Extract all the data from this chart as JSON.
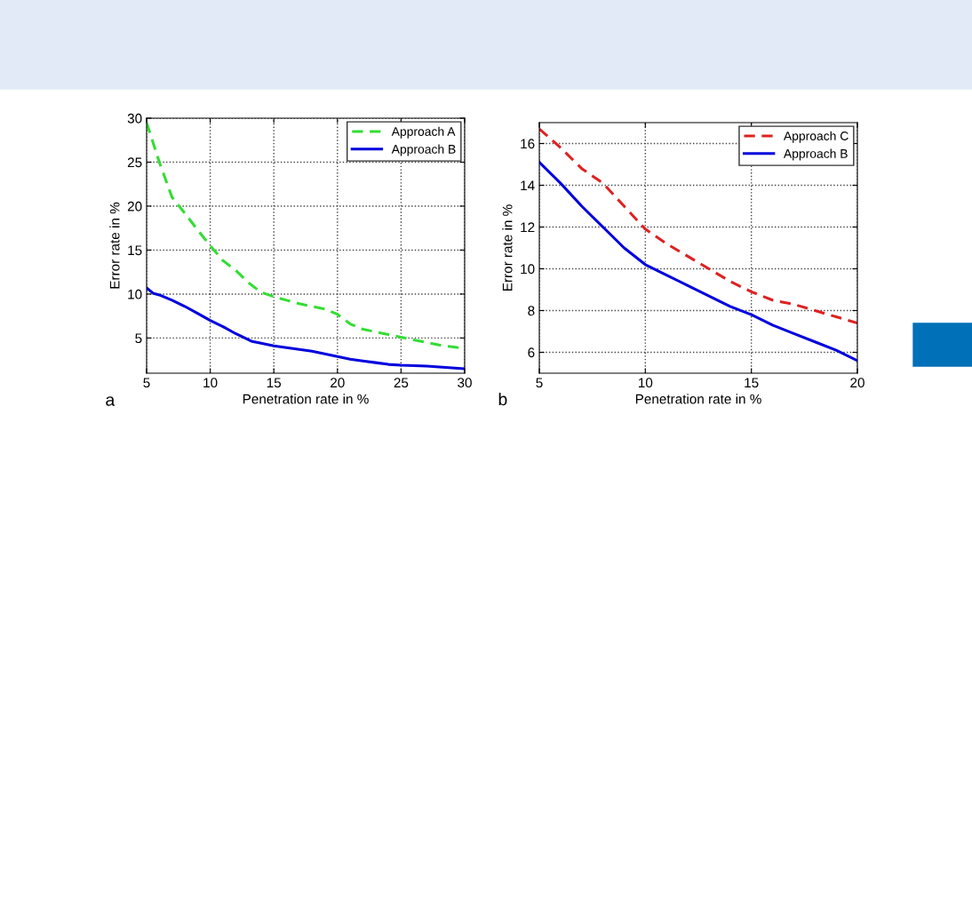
{
  "chart_data": [
    {
      "type": "line",
      "xlabel": "Penetration rate in %",
      "ylabel": "Error rate in %",
      "annotations": [
        "a"
      ],
      "xlim": [
        5,
        30
      ],
      "xticks": [
        5,
        10,
        15,
        20,
        25,
        30
      ],
      "ylim": [
        1,
        30
      ],
      "yticks": [
        5,
        10,
        15,
        20,
        25,
        30
      ],
      "grid": true,
      "legend": "top right",
      "series": [
        {
          "name": "Approach A",
          "color": "#33dd33",
          "line_style": "dashed",
          "x": [
            5,
            6,
            7,
            8,
            9,
            10,
            11,
            12,
            13,
            14,
            15,
            16,
            17,
            18,
            19,
            20,
            21,
            22,
            23,
            24,
            25,
            26,
            27,
            28,
            29,
            30
          ],
          "values": [
            29.5,
            25,
            21,
            19.2,
            17.3,
            15.5,
            13.8,
            12.7,
            11.3,
            10.2,
            9.7,
            9.3,
            8.9,
            8.6,
            8.3,
            7.7,
            6.6,
            6.0,
            5.7,
            5.4,
            5.1,
            4.8,
            4.5,
            4.2,
            4.0,
            3.8
          ]
        },
        {
          "name": "Approach B",
          "color": "#0000dd",
          "line_style": "solid",
          "x": [
            5,
            5.5,
            6,
            7,
            8,
            9,
            10,
            11,
            12,
            13.3,
            14,
            15,
            16,
            17,
            18,
            19,
            20,
            21,
            22,
            23,
            24,
            25,
            26,
            27,
            28,
            29,
            30
          ],
          "values": [
            10.7,
            10.1,
            9.9,
            9.3,
            8.6,
            7.8,
            7.0,
            6.3,
            5.5,
            4.6,
            4.4,
            4.1,
            3.9,
            3.7,
            3.5,
            3.2,
            2.9,
            2.6,
            2.4,
            2.2,
            2.0,
            1.9,
            1.85,
            1.8,
            1.7,
            1.6,
            1.5
          ]
        }
      ]
    },
    {
      "type": "line",
      "xlabel": "Penetration rate in %",
      "ylabel": "Error rate in %",
      "annotations": [
        "b"
      ],
      "xlim": [
        5,
        20
      ],
      "xticks": [
        5,
        10,
        15,
        20
      ],
      "ylim": [
        5,
        17
      ],
      "yticks": [
        6,
        8,
        10,
        12,
        14,
        16
      ],
      "grid": true,
      "legend": "top right",
      "series": [
        {
          "name": "Approach C",
          "color": "#dd2222",
          "line_style": "dashed",
          "x": [
            5,
            6,
            7,
            8,
            9,
            10,
            11,
            12,
            13,
            14,
            15,
            16,
            17,
            18,
            19,
            20
          ],
          "values": [
            16.7,
            15.8,
            14.8,
            14.1,
            13.0,
            11.9,
            11.2,
            10.6,
            10.0,
            9.4,
            8.9,
            8.5,
            8.3,
            8.0,
            7.7,
            7.4
          ]
        },
        {
          "name": "Approach B",
          "color": "#0000dd",
          "line_style": "solid",
          "x": [
            5,
            6,
            7,
            8,
            9,
            10,
            11,
            12,
            13,
            14,
            15,
            16,
            17,
            18,
            19,
            20
          ],
          "values": [
            15.1,
            14.1,
            13.0,
            12.0,
            11.0,
            10.2,
            9.7,
            9.2,
            8.7,
            8.2,
            7.8,
            7.3,
            6.9,
            6.5,
            6.1,
            5.6
          ]
        }
      ]
    }
  ]
}
